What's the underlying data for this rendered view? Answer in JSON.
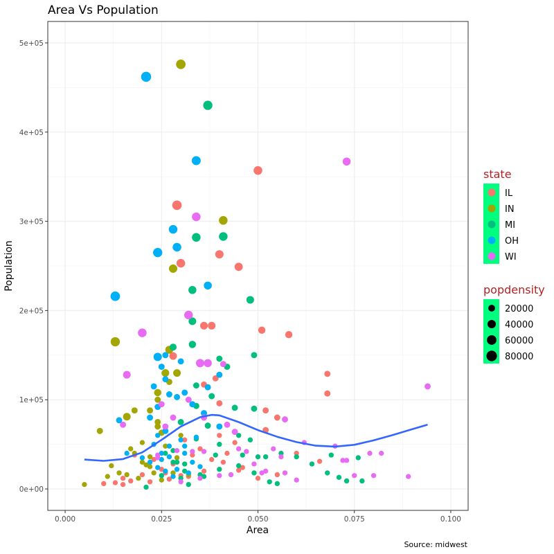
{
  "chart_data": {
    "type": "scatter",
    "title": "Area Vs Population",
    "xlabel": "Area",
    "ylabel": "Population",
    "caption": "Source: midwest",
    "xlim": [
      -0.0045,
      0.1045
    ],
    "ylim": [
      -24000,
      524000
    ],
    "x_ticks": [
      0.0,
      0.025,
      0.05,
      0.075,
      0.1
    ],
    "x_tick_labels": [
      "0.000",
      "0.025",
      "0.050",
      "0.075",
      "0.100"
    ],
    "y_ticks": [
      0,
      100000,
      200000,
      300000,
      400000,
      500000
    ],
    "y_tick_labels": [
      "0e+00",
      "1e+05",
      "2e+05",
      "3e+05",
      "4e+05",
      "5e+05"
    ],
    "grid": true,
    "colors": {
      "IL": "#F8766D",
      "IN": "#A3A500",
      "MI": "#00BF7D",
      "OH": "#00B0F6",
      "WI": "#E76BF3",
      "smooth": "#3366FF"
    },
    "legend_state": {
      "title": "state",
      "entries": [
        "IL",
        "IN",
        "MI",
        "OH",
        "WI"
      ],
      "fill": "#00FF7F"
    },
    "legend_size": {
      "title": "popdensity",
      "entries": [
        {
          "label": "20000",
          "value": 20000
        },
        {
          "label": "40000",
          "value": 40000
        },
        {
          "label": "60000",
          "value": 60000
        },
        {
          "label": "80000",
          "value": 80000
        }
      ],
      "fill": "#00FF7F"
    },
    "smooth": [
      [
        0.005,
        33000
      ],
      [
        0.01,
        31500
      ],
      [
        0.015,
        33500
      ],
      [
        0.02,
        41000
      ],
      [
        0.025,
        55000
      ],
      [
        0.03,
        70000
      ],
      [
        0.035,
        80500
      ],
      [
        0.038,
        83000
      ],
      [
        0.04,
        82500
      ],
      [
        0.045,
        75000
      ],
      [
        0.05,
        66000
      ],
      [
        0.055,
        58500
      ],
      [
        0.06,
        52500
      ],
      [
        0.065,
        48500
      ],
      [
        0.07,
        47500
      ],
      [
        0.075,
        49500
      ],
      [
        0.08,
        54500
      ],
      [
        0.085,
        60500
      ],
      [
        0.09,
        67000
      ],
      [
        0.094,
        72000
      ]
    ],
    "points": {
      "IL": [
        [
          0.029,
          318000
        ],
        [
          0.05,
          357000
        ],
        [
          0.03,
          253000
        ],
        [
          0.04,
          263000
        ],
        [
          0.045,
          249000
        ],
        [
          0.036,
          183000
        ],
        [
          0.038,
          183000
        ],
        [
          0.051,
          178000
        ],
        [
          0.058,
          173000
        ],
        [
          0.028,
          149000
        ],
        [
          0.068,
          129000
        ],
        [
          0.068,
          107000
        ],
        [
          0.036,
          117000
        ],
        [
          0.039,
          124000
        ],
        [
          0.04,
          96000
        ],
        [
          0.052,
          88000
        ],
        [
          0.055,
          80000
        ],
        [
          0.04,
          60000
        ],
        [
          0.052,
          66000
        ],
        [
          0.044,
          52000
        ],
        [
          0.031,
          55000
        ],
        [
          0.035,
          45000
        ],
        [
          0.042,
          40000
        ],
        [
          0.038,
          33000
        ],
        [
          0.046,
          24000
        ],
        [
          0.06,
          40000
        ],
        [
          0.066,
          31000
        ],
        [
          0.041,
          30000
        ],
        [
          0.03,
          15000
        ],
        [
          0.025,
          22000
        ],
        [
          0.02,
          16000
        ],
        [
          0.017,
          9000
        ],
        [
          0.013,
          7000
        ],
        [
          0.01,
          6000
        ],
        [
          0.015,
          12000
        ],
        [
          0.022,
          8000
        ],
        [
          0.027,
          11000
        ],
        [
          0.032,
          14000
        ],
        [
          0.036,
          20000
        ],
        [
          0.045,
          21000
        ],
        [
          0.05,
          12000
        ],
        [
          0.055,
          16000
        ],
        [
          0.028,
          28000
        ],
        [
          0.023,
          33000
        ],
        [
          0.018,
          38000
        ],
        [
          0.033,
          38000
        ],
        [
          0.026,
          18000
        ],
        [
          0.015,
          5000
        ]
      ],
      "IN": [
        [
          0.03,
          476000
        ],
        [
          0.013,
          165000
        ],
        [
          0.041,
          301000
        ],
        [
          0.028,
          247000
        ],
        [
          0.027,
          156000
        ],
        [
          0.029,
          130000
        ],
        [
          0.024,
          108000
        ],
        [
          0.026,
          130000
        ],
        [
          0.016,
          81000
        ],
        [
          0.018,
          88000
        ],
        [
          0.009,
          65000
        ],
        [
          0.022,
          88000
        ],
        [
          0.024,
          75000
        ],
        [
          0.024,
          70000
        ],
        [
          0.03,
          60000
        ],
        [
          0.018,
          40000
        ],
        [
          0.017,
          45000
        ],
        [
          0.02,
          30000
        ],
        [
          0.022,
          25000
        ],
        [
          0.012,
          26000
        ],
        [
          0.014,
          18000
        ],
        [
          0.011,
          14000
        ],
        [
          0.016,
          16000
        ],
        [
          0.023,
          18000
        ],
        [
          0.025,
          10000
        ],
        [
          0.019,
          12000
        ],
        [
          0.005,
          5000
        ],
        [
          0.02,
          52000
        ],
        [
          0.028,
          18000
        ],
        [
          0.026,
          48000
        ],
        [
          0.022,
          36000
        ],
        [
          0.021,
          27000
        ],
        [
          0.029,
          35000
        ],
        [
          0.032,
          16000
        ],
        [
          0.027,
          120000
        ],
        [
          0.024,
          100000
        ],
        [
          0.025,
          63000
        ]
      ],
      "MI": [
        [
          0.037,
          430000
        ],
        [
          0.034,
          282000
        ],
        [
          0.041,
          283000
        ],
        [
          0.033,
          223000
        ],
        [
          0.048,
          212000
        ],
        [
          0.033,
          188000
        ],
        [
          0.033,
          162000
        ],
        [
          0.028,
          159000
        ],
        [
          0.049,
          150000
        ],
        [
          0.04,
          146000
        ],
        [
          0.042,
          137000
        ],
        [
          0.034,
          116000
        ],
        [
          0.038,
          104000
        ],
        [
          0.049,
          90000
        ],
        [
          0.044,
          91000
        ],
        [
          0.034,
          93000
        ],
        [
          0.03,
          75000
        ],
        [
          0.037,
          71000
        ],
        [
          0.045,
          60000
        ],
        [
          0.048,
          55000
        ],
        [
          0.034,
          56000
        ],
        [
          0.04,
          50000
        ],
        [
          0.046,
          38000
        ],
        [
          0.05,
          36000
        ],
        [
          0.052,
          36000
        ],
        [
          0.056,
          40000
        ],
        [
          0.06,
          36000
        ],
        [
          0.069,
          38000
        ],
        [
          0.076,
          35000
        ],
        [
          0.064,
          28000
        ],
        [
          0.045,
          26000
        ],
        [
          0.04,
          22000
        ],
        [
          0.035,
          16000
        ],
        [
          0.03,
          12000
        ],
        [
          0.025,
          15000
        ],
        [
          0.021,
          2000
        ],
        [
          0.032,
          5000
        ],
        [
          0.036,
          14000
        ],
        [
          0.049,
          18000
        ],
        [
          0.053,
          8000
        ],
        [
          0.068,
          18000
        ],
        [
          0.071,
          13000
        ],
        [
          0.077,
          9000
        ],
        [
          0.073,
          9000
        ],
        [
          0.055,
          6000
        ],
        [
          0.031,
          28000
        ],
        [
          0.028,
          43000
        ],
        [
          0.026,
          40000
        ],
        [
          0.031,
          20000
        ],
        [
          0.029,
          30000
        ],
        [
          0.039,
          38000
        ],
        [
          0.028,
          30000
        ]
      ],
      "OH": [
        [
          0.021,
          462000
        ],
        [
          0.034,
          368000
        ],
        [
          0.028,
          291000
        ],
        [
          0.029,
          271000
        ],
        [
          0.024,
          265000
        ],
        [
          0.037,
          228000
        ],
        [
          0.013,
          216000
        ],
        [
          0.024,
          148000
        ],
        [
          0.026,
          150000
        ],
        [
          0.03,
          143000
        ],
        [
          0.025,
          137000
        ],
        [
          0.037,
          114000
        ],
        [
          0.026,
          123000
        ],
        [
          0.023,
          115000
        ],
        [
          0.027,
          106000
        ],
        [
          0.029,
          103000
        ],
        [
          0.031,
          108000
        ],
        [
          0.022,
          80000
        ],
        [
          0.024,
          92000
        ],
        [
          0.033,
          95000
        ],
        [
          0.036,
          85000
        ],
        [
          0.04,
          70000
        ],
        [
          0.04,
          128000
        ],
        [
          0.014,
          77000
        ],
        [
          0.016,
          40000
        ],
        [
          0.024,
          60000
        ],
        [
          0.026,
          65000
        ],
        [
          0.031,
          48000
        ],
        [
          0.027,
          48000
        ],
        [
          0.025,
          40000
        ],
        [
          0.022,
          30000
        ],
        [
          0.024,
          24000
        ],
        [
          0.026,
          20000
        ],
        [
          0.028,
          14000
        ],
        [
          0.032,
          18000
        ],
        [
          0.035,
          25000
        ],
        [
          0.023,
          50000
        ],
        [
          0.03,
          55000
        ],
        [
          0.033,
          30000
        ],
        [
          0.027,
          36000
        ],
        [
          0.025,
          33000
        ],
        [
          0.029,
          22000
        ],
        [
          0.031,
          40000
        ],
        [
          0.02,
          35000
        ],
        [
          0.034,
          58000
        ]
      ],
      "WI": [
        [
          0.073,
          367000
        ],
        [
          0.034,
          305000
        ],
        [
          0.032,
          195000
        ],
        [
          0.02,
          175000
        ],
        [
          0.016,
          128000
        ],
        [
          0.035,
          141000
        ],
        [
          0.037,
          141000
        ],
        [
          0.041,
          140000
        ],
        [
          0.094,
          115000
        ],
        [
          0.032,
          100000
        ],
        [
          0.025,
          95000
        ],
        [
          0.036,
          80000
        ],
        [
          0.057,
          78000
        ],
        [
          0.042,
          72000
        ],
        [
          0.044,
          64000
        ],
        [
          0.062,
          52000
        ],
        [
          0.07,
          48000
        ],
        [
          0.079,
          40000
        ],
        [
          0.082,
          40000
        ],
        [
          0.072,
          32000
        ],
        [
          0.073,
          32000
        ],
        [
          0.054,
          45000
        ],
        [
          0.056,
          36000
        ],
        [
          0.047,
          42000
        ],
        [
          0.045,
          45000
        ],
        [
          0.036,
          42000
        ],
        [
          0.033,
          42000
        ],
        [
          0.049,
          28000
        ],
        [
          0.051,
          18000
        ],
        [
          0.057,
          18000
        ],
        [
          0.06,
          10000
        ],
        [
          0.075,
          15000
        ],
        [
          0.08,
          15000
        ],
        [
          0.089,
          14000
        ],
        [
          0.04,
          15000
        ],
        [
          0.03,
          8000
        ],
        [
          0.035,
          12000
        ],
        [
          0.043,
          16000
        ],
        [
          0.052,
          20000
        ],
        [
          0.015,
          72000
        ],
        [
          0.024,
          38000
        ],
        [
          0.024,
          35000
        ],
        [
          0.026,
          70000
        ],
        [
          0.029,
          43000
        ],
        [
          0.028,
          80000
        ]
      ]
    },
    "sizes": {
      "IL": [
        60000,
        45000,
        45000,
        40000,
        38000,
        30000,
        30000,
        25000,
        25000,
        30000
      ],
      "IN": [
        60000,
        55000,
        45000,
        40000,
        35000,
        30000,
        25000,
        30000,
        30000
      ],
      "MI": [
        55000,
        45000,
        45000,
        35000,
        30000,
        30000,
        25000
      ],
      "OH": [
        70000,
        50000,
        45000,
        45000,
        55000,
        35000,
        60000,
        40000
      ],
      "WI": [
        35000,
        45000,
        45000,
        45000,
        30000,
        40000,
        35000
      ]
    }
  }
}
